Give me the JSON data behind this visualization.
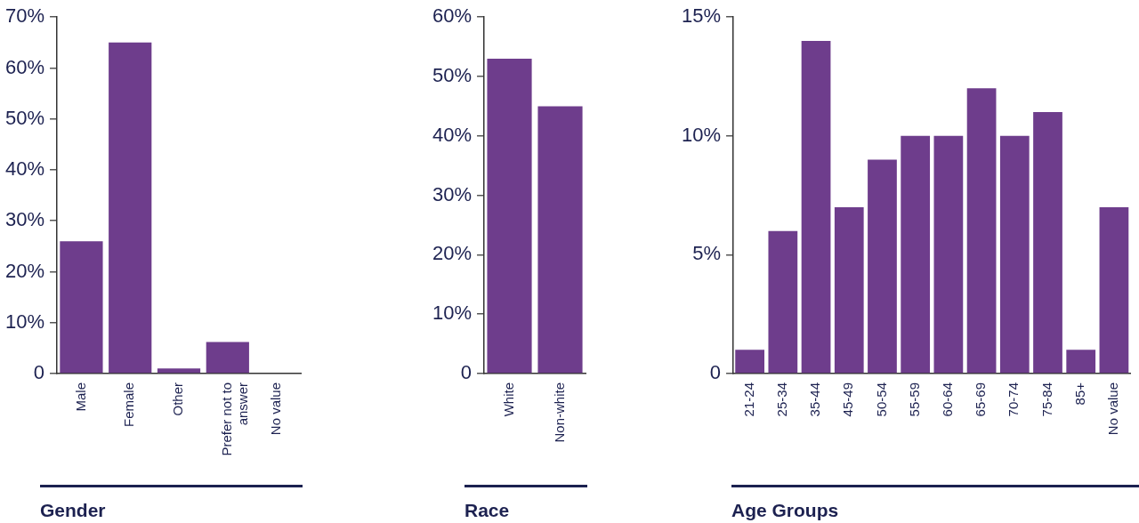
{
  "chart_data": [
    {
      "type": "bar",
      "title": "Gender",
      "categories": [
        "Male",
        "Female",
        "Other",
        "Prefer not to answer",
        "No value"
      ],
      "values": [
        26,
        65,
        1,
        6.2,
        0
      ],
      "color": "#6e3d8c",
      "ylim": [
        0,
        70
      ],
      "yticks": [
        {
          "value": 0,
          "label": "0"
        },
        {
          "value": 10,
          "label": "10%"
        },
        {
          "value": 20,
          "label": "20%"
        },
        {
          "value": 30,
          "label": "30%"
        },
        {
          "value": 40,
          "label": "40%"
        },
        {
          "value": 50,
          "label": "50%"
        },
        {
          "value": 60,
          "label": "60%"
        },
        {
          "value": 70,
          "label": "70%"
        }
      ],
      "grid": false,
      "legend": false
    },
    {
      "type": "bar",
      "title": "Race",
      "categories": [
        "White",
        "Non-white"
      ],
      "values": [
        53,
        45
      ],
      "color": "#6e3d8c",
      "ylim": [
        0,
        60
      ],
      "yticks": [
        {
          "value": 0,
          "label": "0"
        },
        {
          "value": 10,
          "label": "10%"
        },
        {
          "value": 20,
          "label": "20%"
        },
        {
          "value": 30,
          "label": "30%"
        },
        {
          "value": 40,
          "label": "40%"
        },
        {
          "value": 50,
          "label": "50%"
        },
        {
          "value": 60,
          "label": "60%"
        }
      ],
      "grid": false,
      "legend": false
    },
    {
      "type": "bar",
      "title": "Age Groups",
      "categories": [
        "21-24",
        "25-34",
        "35-44",
        "45-49",
        "50-54",
        "55-59",
        "60-64",
        "65-69",
        "70-74",
        "75-84",
        "85+",
        "No value"
      ],
      "values": [
        1,
        6,
        14,
        7,
        9,
        10,
        10,
        12,
        10,
        11,
        1,
        7
      ],
      "color": "#6e3d8c",
      "ylim": [
        0,
        15
      ],
      "yticks": [
        {
          "value": 0,
          "label": "0"
        },
        {
          "value": 5,
          "label": "5%"
        },
        {
          "value": 10,
          "label": "10%"
        },
        {
          "value": 15,
          "label": "15%"
        }
      ],
      "grid": false,
      "legend": false
    }
  ]
}
